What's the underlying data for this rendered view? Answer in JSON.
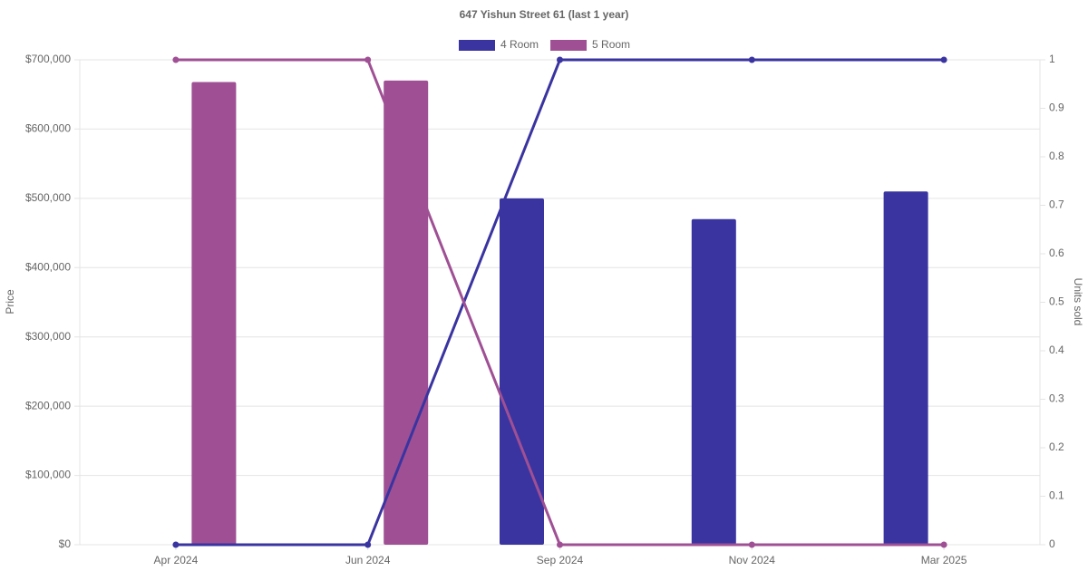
{
  "chart_data": {
    "type": "bar-line",
    "title": "647 Yishun Street 61 (last 1 year)",
    "y_label": "Price",
    "y2_label": "Units sold",
    "categories": [
      "Apr 2024",
      "Jun 2024",
      "Sep 2024",
      "Nov 2024",
      "Mar 2025"
    ],
    "series": [
      {
        "name": "4 Room",
        "type": "bar",
        "color": "#3a34a0",
        "values": [
          null,
          null,
          500000,
          470000,
          510000
        ]
      },
      {
        "name": "5 Room",
        "type": "bar",
        "color": "#9f5094",
        "values": [
          668000,
          670000,
          null,
          null,
          null
        ]
      },
      {
        "type": "line",
        "axis": "y2",
        "color": "#3a34a0",
        "values": [
          0,
          0,
          1,
          1,
          1
        ]
      },
      {
        "type": "line",
        "axis": "y2",
        "color": "#9f5094",
        "values": [
          1,
          1,
          0,
          0,
          0
        ]
      }
    ],
    "ylim": [
      0,
      700000
    ],
    "yticks": [
      {
        "value": 0,
        "label": "$0"
      },
      {
        "value": 100000,
        "label": "$100,000"
      },
      {
        "value": 200000,
        "label": "$200,000"
      },
      {
        "value": 300000,
        "label": "$300,000"
      },
      {
        "value": 400000,
        "label": "$400,000"
      },
      {
        "value": 500000,
        "label": "$500,000"
      },
      {
        "value": 600000,
        "label": "$600,000"
      },
      {
        "value": 700000,
        "label": "$700,000"
      }
    ],
    "y2lim": [
      0,
      1
    ],
    "y2ticks": [
      0,
      0.1,
      0.2,
      0.3,
      0.4,
      0.5,
      0.6,
      0.7,
      0.8,
      0.9,
      1
    ],
    "grid": true,
    "legend": "top"
  }
}
